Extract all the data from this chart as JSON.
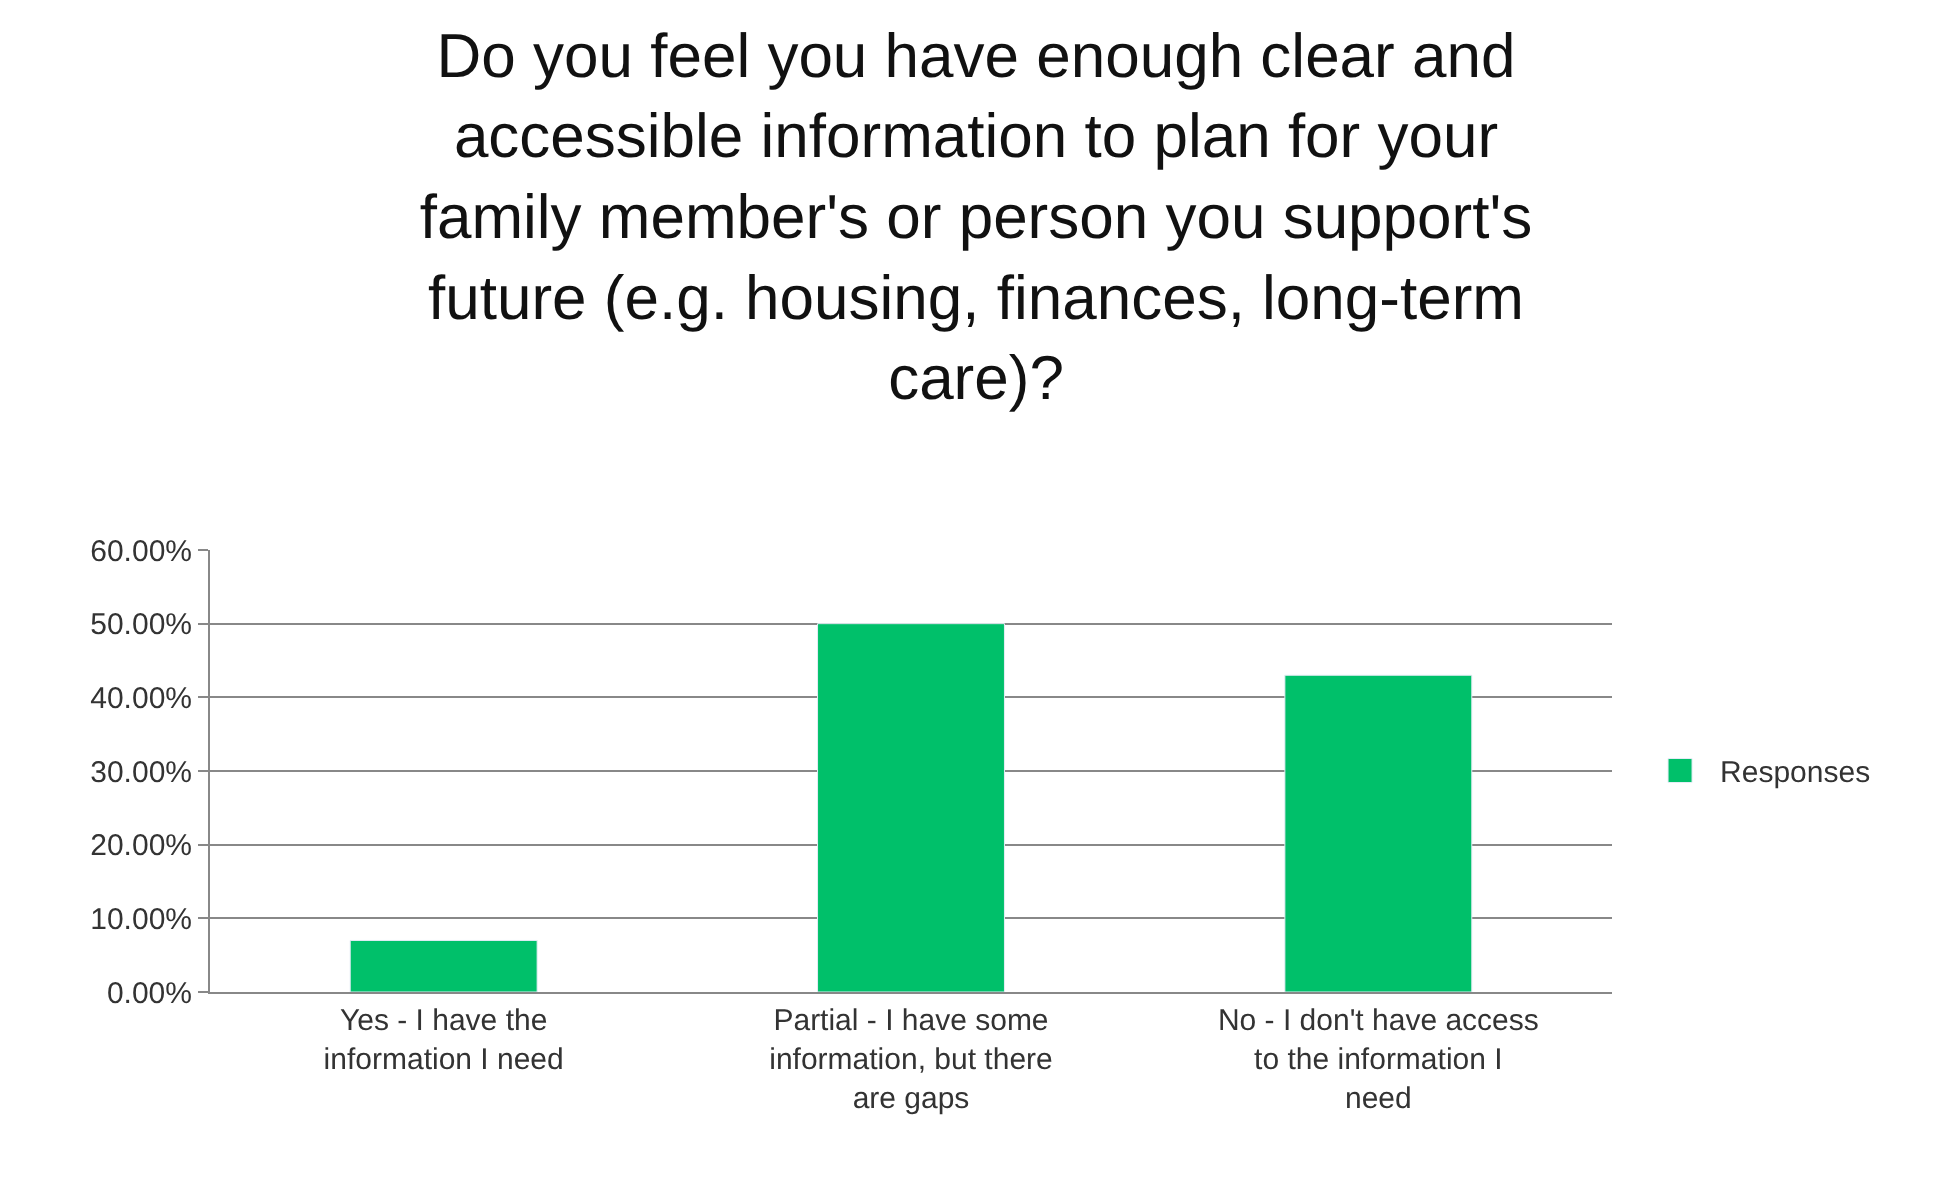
{
  "chart_data": {
    "type": "bar",
    "title": "Do you feel you have enough clear and accessible information to plan for your family member's or person you support's future (e.g. housing, finances, long-term care)?",
    "categories": [
      "Yes - I have the information I need",
      "Partial - I have some information, but there are gaps",
      "No - I don't have access to the information I need"
    ],
    "series": [
      {
        "name": "Responses",
        "color": "#00c06a",
        "values": [
          7,
          50,
          43
        ]
      }
    ],
    "ylim": [
      0,
      60
    ],
    "yticks": [
      {
        "value": 0,
        "label": "0.00%"
      },
      {
        "value": 10,
        "label": "10.00%"
      },
      {
        "value": 20,
        "label": "20.00%"
      },
      {
        "value": 30,
        "label": "30.00%"
      },
      {
        "value": 40,
        "label": "40.00%"
      },
      {
        "value": 50,
        "label": "50.00%"
      },
      {
        "value": 60,
        "label": "60.00%"
      }
    ],
    "grid": "y",
    "legend": "right"
  }
}
